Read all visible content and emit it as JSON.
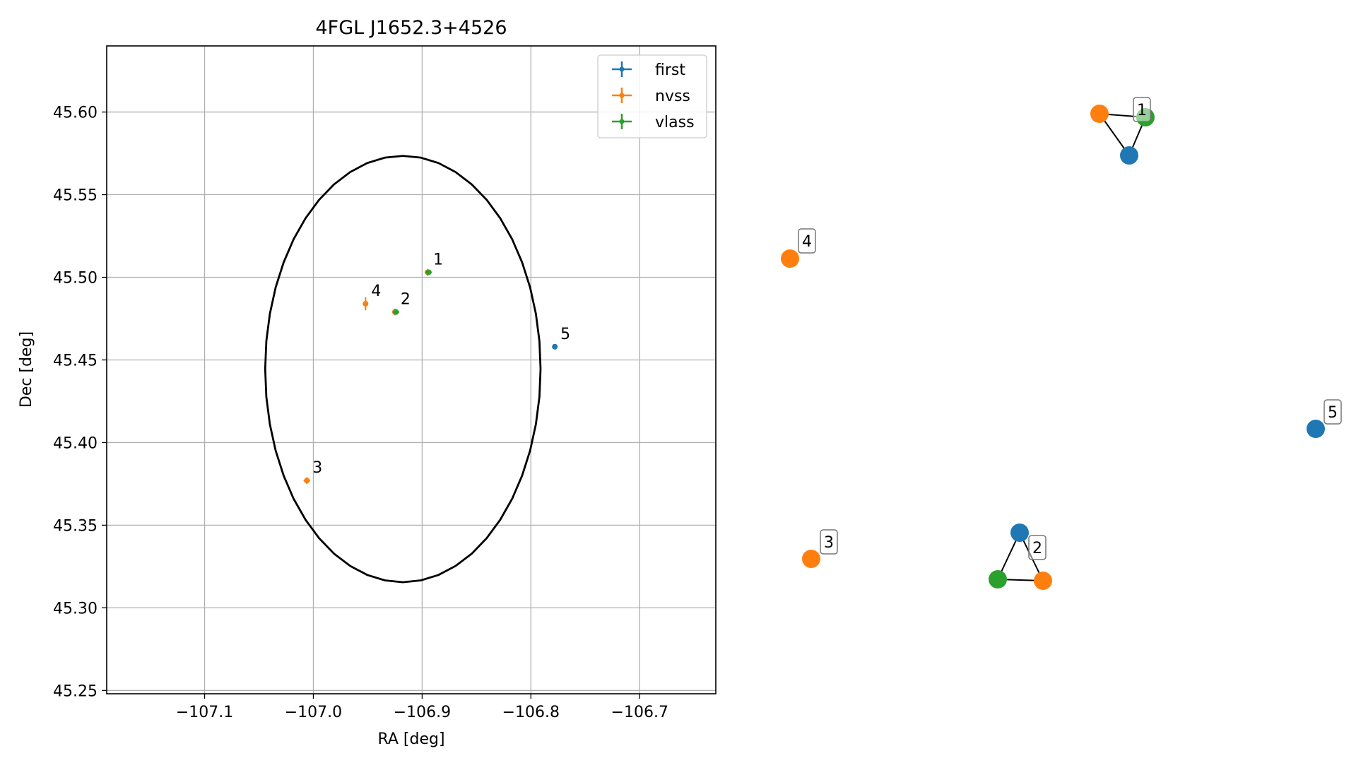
{
  "chart_data": [
    {
      "type": "scatter",
      "title": "4FGL J1652.3+4526",
      "xlabel": "RA [deg]",
      "ylabel": "Dec [deg]",
      "xlim": [
        -107.19,
        -106.63
      ],
      "ylim": [
        45.248,
        45.64
      ],
      "grid": true,
      "legend_position": "top-right",
      "x_ticks": [
        -107.1,
        -107.0,
        -106.9,
        -106.8,
        -106.7
      ],
      "x_tick_labels": [
        "−107.1",
        "−107.0",
        "−106.9",
        "−106.8",
        "−106.7"
      ],
      "y_ticks": [
        45.25,
        45.3,
        45.35,
        45.4,
        45.45,
        45.5,
        45.55,
        45.6
      ],
      "y_tick_labels": [
        "45.25",
        "45.30",
        "45.35",
        "45.40",
        "45.45",
        "45.50",
        "45.55",
        "45.60"
      ],
      "series": [
        {
          "name": "first",
          "color": "#1f77b4",
          "points": [
            {
              "x": -106.778,
              "y": 45.458,
              "xerr": 0.002,
              "yerr": 0.001
            }
          ]
        },
        {
          "name": "nvss",
          "color": "#ff7f0e",
          "points": [
            {
              "x": -106.952,
              "y": 45.484,
              "xerr": 0.002,
              "yerr": 0.004
            },
            {
              "x": -107.006,
              "y": 45.377,
              "xerr": 0.003,
              "yerr": 0.002
            },
            {
              "x": -106.925,
              "y": 45.479,
              "xerr": 0.002,
              "yerr": 0.002
            },
            {
              "x": -106.895,
              "y": 45.503,
              "xerr": 0.002,
              "yerr": 0.002
            }
          ]
        },
        {
          "name": "vlass",
          "color": "#2ca02c",
          "points": [
            {
              "x": -106.894,
              "y": 45.503,
              "xerr": 0.003,
              "yerr": 0.001
            },
            {
              "x": -106.924,
              "y": 45.479,
              "xerr": 0.003,
              "yerr": 0.001
            }
          ]
        }
      ],
      "annotations": [
        {
          "text": "1",
          "x": -106.895,
          "y": 45.503
        },
        {
          "text": "2",
          "x": -106.925,
          "y": 45.479
        },
        {
          "text": "3",
          "x": -107.006,
          "y": 45.377
        },
        {
          "text": "4",
          "x": -106.952,
          "y": 45.484
        },
        {
          "text": "5",
          "x": -106.778,
          "y": 45.458
        }
      ],
      "ellipse": {
        "center_x": -106.9177,
        "center_y": 45.4445,
        "semi_axis_ra": 0.1266,
        "semi_axis_dec": 0.129,
        "color": "#000000"
      }
    },
    {
      "type": "graph",
      "description_free": true,
      "colors": {
        "first": "#1f77b4",
        "nvss": "#ff7f0e",
        "vlass": "#2ca02c"
      },
      "groups": [
        {
          "label": "1",
          "nodes": [
            "nvss",
            "vlass",
            "first"
          ],
          "edges": [
            [
              0,
              1
            ],
            [
              0,
              2
            ],
            [
              1,
              2
            ]
          ]
        },
        {
          "label": "2",
          "nodes": [
            "first",
            "vlass",
            "nvss"
          ],
          "edges": [
            [
              0,
              1
            ],
            [
              0,
              2
            ],
            [
              1,
              2
            ]
          ]
        },
        {
          "label": "3",
          "nodes": [
            "nvss"
          ],
          "edges": []
        },
        {
          "label": "4",
          "nodes": [
            "nvss"
          ],
          "edges": []
        },
        {
          "label": "5",
          "nodes": [
            "first"
          ],
          "edges": []
        }
      ]
    }
  ]
}
